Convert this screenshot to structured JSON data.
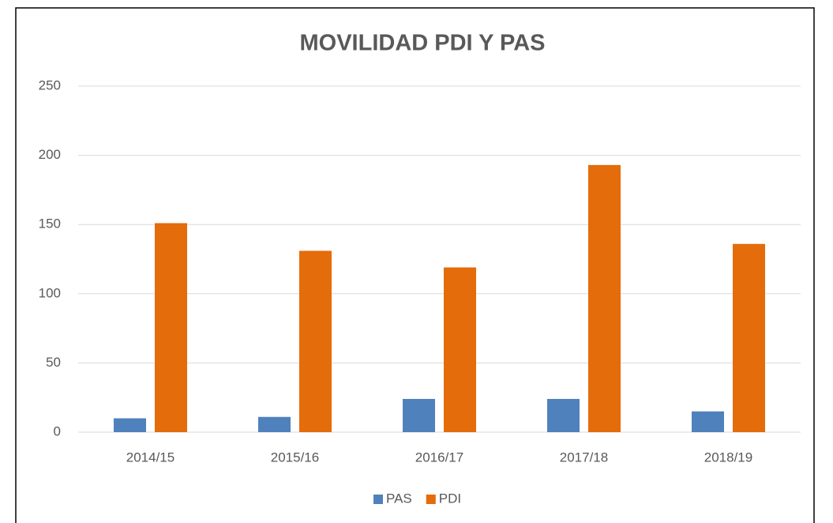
{
  "chart_data": {
    "type": "bar",
    "title": "MOVILIDAD PDI Y PAS",
    "categories": [
      "2014/15",
      "2015/16",
      "2016/17",
      "2017/18",
      "2018/19"
    ],
    "series": [
      {
        "name": "PAS",
        "color": "#4f81bd",
        "values": [
          10,
          11,
          24,
          24,
          15
        ]
      },
      {
        "name": "PDI",
        "color": "#e46c0a",
        "values": [
          151,
          131,
          119,
          193,
          136
        ]
      }
    ],
    "ylim": [
      0,
      250
    ],
    "yticks": [
      0,
      50,
      100,
      150,
      200,
      250
    ],
    "grid": true,
    "legend": "bottom"
  }
}
